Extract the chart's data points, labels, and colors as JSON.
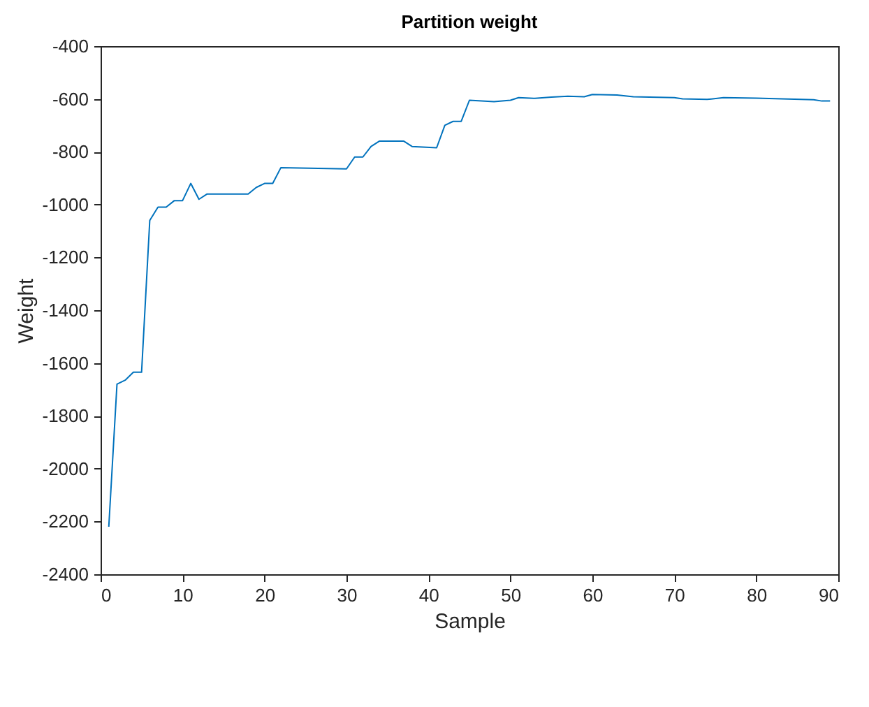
{
  "chart_data": {
    "type": "line",
    "title": "Partition weight",
    "xlabel": "Sample",
    "ylabel": "Weight",
    "x": [
      1,
      2,
      3,
      4,
      5,
      6,
      7,
      8,
      9,
      10,
      11,
      12,
      13,
      18,
      19,
      20,
      21,
      22,
      30,
      31,
      32,
      33,
      34,
      37,
      38,
      41,
      42,
      43,
      44,
      45,
      48,
      50,
      51,
      53,
      55,
      57,
      59,
      60,
      63,
      65,
      70,
      71,
      74,
      76,
      80,
      87,
      88,
      89
    ],
    "series": [
      {
        "color": "#0072bd",
        "values": [
          -2220,
          -1680,
          -1665,
          -1635,
          -1635,
          -1060,
          -1010,
          -1010,
          -985,
          -985,
          -920,
          -980,
          -960,
          -960,
          -935,
          -920,
          -920,
          -860,
          -865,
          -820,
          -820,
          -780,
          -760,
          -760,
          -780,
          -785,
          -700,
          -685,
          -685,
          -605,
          -610,
          -605,
          -595,
          -598,
          -593,
          -590,
          -592,
          -583,
          -585,
          -592,
          -595,
          -600,
          -602,
          -595,
          -597,
          -603,
          -608,
          -608
        ]
      }
    ],
    "xlim": [
      0,
      90
    ],
    "xticks": [
      0,
      10,
      20,
      30,
      40,
      50,
      60,
      70,
      80,
      90
    ],
    "ylim": [
      -2400,
      -400
    ],
    "yticks": [
      -2400,
      -2200,
      -2000,
      -1800,
      -1600,
      -1400,
      -1200,
      -1000,
      -800,
      -600,
      -400
    ]
  }
}
